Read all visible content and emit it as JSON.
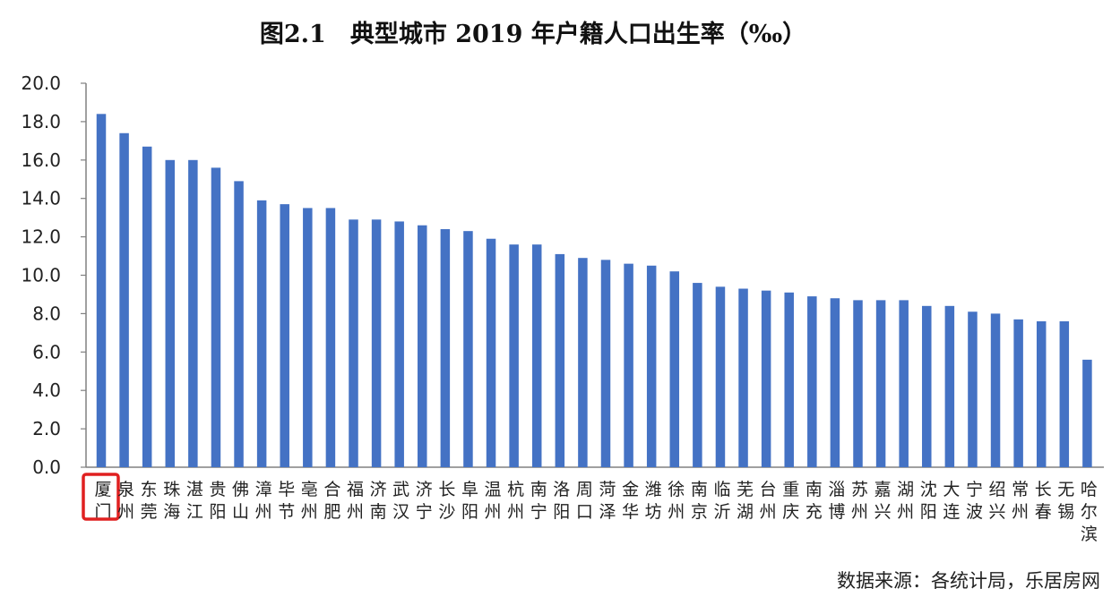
{
  "chart_data": {
    "type": "bar",
    "title": "图2.1　典型城市 2019 年户籍人口出生率（‰）",
    "source": "数据来源：各统计局，乐居房网",
    "ylim": [
      0,
      20
    ],
    "yticks": [
      "0.0",
      "2.0",
      "4.0",
      "6.0",
      "8.0",
      "10.0",
      "12.0",
      "14.0",
      "16.0",
      "18.0",
      "20.0"
    ],
    "grid": false,
    "highlight_category": "厦门",
    "colors": {
      "bar": "#4472c4",
      "highlight_box": "#e02020",
      "axis": "#808080"
    },
    "categories": [
      "厦门",
      "泉州",
      "东莞",
      "珠海",
      "湛江",
      "贵阳",
      "佛山",
      "漳州",
      "毕节",
      "亳州",
      "合肥",
      "福州",
      "济南",
      "武汉",
      "济宁",
      "长沙",
      "阜阳",
      "温州",
      "杭州",
      "南宁",
      "洛阳",
      "周口",
      "菏泽",
      "金华",
      "潍坊",
      "徐州",
      "南京",
      "临沂",
      "芜湖",
      "台州",
      "重庆",
      "南充",
      "淄博",
      "苏州",
      "嘉兴",
      "湖州",
      "沈阳",
      "大连",
      "宁波",
      "绍兴",
      "常州",
      "长春",
      "无锡",
      "哈尔滨"
    ],
    "values": [
      18.4,
      17.4,
      16.7,
      16.0,
      16.0,
      15.6,
      14.9,
      13.9,
      13.7,
      13.5,
      13.5,
      12.9,
      12.9,
      12.8,
      12.6,
      12.4,
      12.3,
      11.9,
      11.6,
      11.6,
      11.1,
      10.9,
      10.8,
      10.6,
      10.5,
      10.2,
      9.6,
      9.4,
      9.3,
      9.2,
      9.1,
      8.9,
      8.8,
      8.7,
      8.7,
      8.7,
      8.4,
      8.4,
      8.1,
      8.0,
      7.7,
      7.6,
      7.6,
      5.6
    ]
  }
}
